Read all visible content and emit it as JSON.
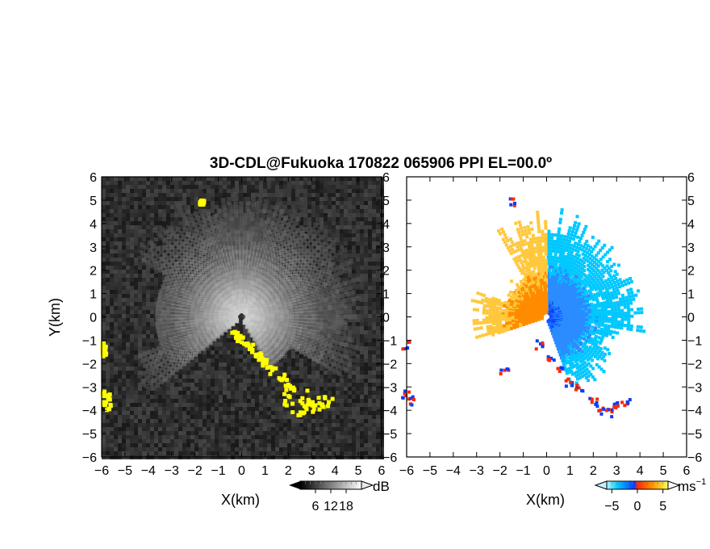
{
  "title": "3D-CDL@Fukuoka 170822 065906 PPI EL=00.0º",
  "colors": {
    "background": "#ffffff",
    "snr_background": "#2b2b2b",
    "hard_target": "#ffff00",
    "velocity_cold": "#00c8ff",
    "velocity_neg_deep": "#0a3cff",
    "velocity_warm": "#ffb400",
    "velocity_pos_deep": "#ff2800"
  },
  "chart_data": [
    {
      "type": "heatmap",
      "name": "snr-ppi",
      "xlabel": "X(km)",
      "ylabel": "Y(km)",
      "xlim": [
        -6,
        6
      ],
      "ylim": [
        -6,
        6
      ],
      "xticks": [
        "−6",
        "−5",
        "−4",
        "−3",
        "−2",
        "−1",
        "0",
        "1",
        "2",
        "3",
        "4",
        "5",
        "6"
      ],
      "yticks": [
        "−6",
        "−5",
        "−4",
        "−3",
        "−2",
        "−1",
        "0",
        "1",
        "2",
        "3",
        "4",
        "5",
        "6"
      ],
      "colorbar": {
        "unit": "dB",
        "ticks": [
          "6",
          "12",
          "18"
        ],
        "range": [
          0,
          24
        ],
        "colormap": "grayscale"
      },
      "overlay": "hard-target echoes (yellow)",
      "hard_target_regions": [
        {
          "x": [
            -0.4,
            2.2
          ],
          "y": [
            -3.1,
            -0.6
          ],
          "note": "diagonal streak from origin to SE"
        },
        {
          "x": [
            1.6,
            3.2
          ],
          "y": [
            -4.3,
            -3.1
          ]
        },
        {
          "x": [
            2.6,
            4.0
          ],
          "y": [
            -4.0,
            -3.4
          ]
        },
        {
          "x": [
            -6.0,
            -5.6
          ],
          "y": [
            -4.0,
            -3.2
          ]
        },
        {
          "x": [
            -6.0,
            -5.8
          ],
          "y": [
            -1.7,
            -1.1
          ]
        },
        {
          "x": [
            -1.8,
            -1.6
          ],
          "y": [
            4.8,
            5.0
          ]
        }
      ]
    },
    {
      "type": "heatmap",
      "name": "doppler-velocity-ppi",
      "xlabel": "X(km)",
      "ylabel": "",
      "xlim": [
        -6,
        6
      ],
      "ylim": [
        -6,
        6
      ],
      "xticks": [
        "−6",
        "−5",
        "−4",
        "−3",
        "−2",
        "−1",
        "0",
        "1",
        "2",
        "3",
        "4",
        "5",
        "6"
      ],
      "yticks": [
        "−6",
        "−5",
        "−4",
        "−3",
        "−2",
        "−1",
        "0",
        "1",
        "2",
        "3",
        "4",
        "5",
        "6"
      ],
      "colorbar": {
        "unit": "ms",
        "unit_exponent": "−1",
        "ticks": [
          "−5",
          "0",
          "5"
        ],
        "range": [
          -6,
          6
        ],
        "colormap": "cyan-blue-red-yellow"
      },
      "regions": [
        {
          "sector": "north-west",
          "velocity_ms": [
            2,
            6
          ],
          "note": "warm colors (orange/yellow)"
        },
        {
          "sector": "east / south-east",
          "velocity_ms": [
            -6,
            -2
          ],
          "note": "cool colors (blue/cyan)"
        },
        {
          "sector": "west beam",
          "velocity_ms": [
            2,
            5
          ],
          "note": "orange streak toward x=-3"
        },
        {
          "sector": "south-east edges",
          "velocity_ms": [
            -6,
            6
          ],
          "note": "red/blue rims along terrain"
        }
      ]
    }
  ],
  "labels": {
    "y_axis_left": "Y(km)",
    "x_axis_left": "X(km)",
    "x_axis_right": "X(km)",
    "cb_left_unit": "dB",
    "cb_right_unit": "ms",
    "cb_right_exp": "−1"
  }
}
